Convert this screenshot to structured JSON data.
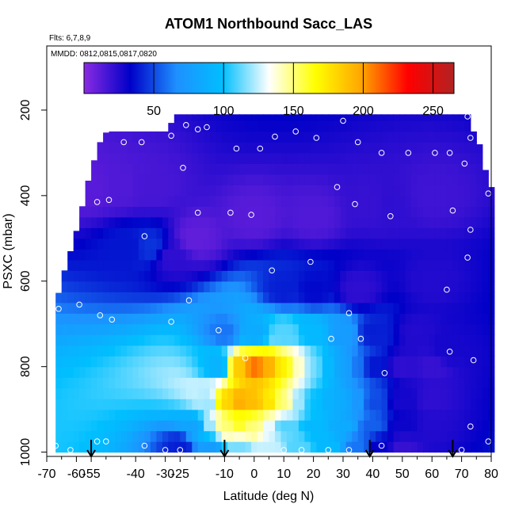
{
  "chart_data": {
    "type": "heatmap",
    "title": "ATOM1 Northbound Sacc_LAS",
    "annotations": [
      "Flts: 6,7,8,9",
      "MMDD: 0812,0815,0817,0820"
    ],
    "xlabel": "Latitude (deg N)",
    "ylabel": "PSXC (mbar)",
    "xlim": [
      -70,
      80
    ],
    "ylim": [
      1000,
      0
    ],
    "x_ticks": [
      -70,
      -60,
      -55,
      -40,
      -30,
      -25,
      -10,
      0,
      10,
      20,
      30,
      40,
      50,
      60,
      70,
      80
    ],
    "x_tick_labels": [
      "-70",
      "-60",
      "-55",
      "-40",
      "-30",
      "-25",
      "-10",
      "0",
      "10",
      "20",
      "30",
      "40",
      "50",
      "60",
      "70",
      "80"
    ],
    "x_minor_ticks": [
      -65,
      -50,
      -45,
      -35,
      -20,
      -15,
      -5,
      5,
      15,
      25,
      35,
      45,
      55,
      65,
      75
    ],
    "y_ticks": [
      200,
      400,
      600,
      800,
      1000
    ],
    "y_tick_labels": [
      "200",
      "400",
      "600",
      "800",
      "1000"
    ],
    "colorbar": {
      "range": [
        0,
        265
      ],
      "ticks": [
        50,
        100,
        150,
        200,
        250
      ],
      "tick_labels": [
        "50",
        "100",
        "150",
        "200",
        "250"
      ],
      "colors": [
        "#8a2be2",
        "#0000c8",
        "#1e90ff",
        "#00bfff",
        "#ffffff",
        "#ffff00",
        "#ffa500",
        "#ff0000",
        "#b22222"
      ]
    },
    "grid": false,
    "pressure_top_envelope": [
      {
        "lat": -67,
        "p": 660
      },
      {
        "lat": -65,
        "p": 595
      },
      {
        "lat": -63,
        "p": 555
      },
      {
        "lat": -61,
        "p": 505
      },
      {
        "lat": -59,
        "p": 460
      },
      {
        "lat": -57,
        "p": 390
      },
      {
        "lat": -55,
        "p": 340
      },
      {
        "lat": -53,
        "p": 295
      },
      {
        "lat": -51,
        "p": 255
      },
      {
        "lat": -49,
        "p": 250
      },
      {
        "lat": -29,
        "p": 250
      },
      {
        "lat": -27,
        "p": 210
      },
      {
        "lat": 72,
        "p": 210
      },
      {
        "lat": 74,
        "p": 250
      },
      {
        "lat": 76,
        "p": 280
      },
      {
        "lat": 78,
        "p": 340
      },
      {
        "lat": 80,
        "p": 380
      }
    ],
    "field": [
      {
        "lat": -55,
        "p": 380,
        "v": 12
      },
      {
        "lat": -45,
        "p": 380,
        "v": 14
      },
      {
        "lat": -35,
        "p": 380,
        "v": 16
      },
      {
        "lat": -42,
        "p": 520,
        "v": 38
      },
      {
        "lat": -35,
        "p": 520,
        "v": 45
      },
      {
        "lat": -28,
        "p": 540,
        "v": 22
      },
      {
        "lat": -20,
        "p": 500,
        "v": 10
      },
      {
        "lat": 0,
        "p": 450,
        "v": 12
      },
      {
        "lat": 20,
        "p": 450,
        "v": 14
      },
      {
        "lat": 40,
        "p": 420,
        "v": 20
      },
      {
        "lat": 45,
        "p": 420,
        "v": 22
      },
      {
        "lat": 60,
        "p": 400,
        "v": 18
      },
      {
        "lat": 10,
        "p": 620,
        "v": 40
      },
      {
        "lat": 20,
        "p": 620,
        "v": 35
      },
      {
        "lat": 35,
        "p": 620,
        "v": 22
      },
      {
        "lat": 60,
        "p": 600,
        "v": 25
      },
      {
        "lat": -10,
        "p": 720,
        "v": 60
      },
      {
        "lat": 0,
        "p": 720,
        "v": 85
      },
      {
        "lat": 10,
        "p": 720,
        "v": 110
      },
      {
        "lat": 20,
        "p": 720,
        "v": 95
      },
      {
        "lat": 30,
        "p": 720,
        "v": 75
      },
      {
        "lat": 40,
        "p": 720,
        "v": 40
      },
      {
        "lat": 55,
        "p": 720,
        "v": 25
      },
      {
        "lat": 65,
        "p": 760,
        "v": 28
      },
      {
        "lat": -12,
        "p": 800,
        "v": 90
      },
      {
        "lat": -5,
        "p": 800,
        "v": 185
      },
      {
        "lat": 0,
        "p": 800,
        "v": 210
      },
      {
        "lat": 5,
        "p": 800,
        "v": 195
      },
      {
        "lat": 10,
        "p": 800,
        "v": 170
      },
      {
        "lat": 15,
        "p": 800,
        "v": 140
      },
      {
        "lat": 20,
        "p": 800,
        "v": 115
      },
      {
        "lat": 25,
        "p": 800,
        "v": 95
      },
      {
        "lat": 30,
        "p": 800,
        "v": 80
      },
      {
        "lat": 35,
        "p": 800,
        "v": 60
      },
      {
        "lat": 40,
        "p": 800,
        "v": 38
      },
      {
        "lat": 50,
        "p": 800,
        "v": 22
      },
      {
        "lat": 60,
        "p": 800,
        "v": 20
      },
      {
        "lat": -15,
        "p": 880,
        "v": 120
      },
      {
        "lat": -10,
        "p": 880,
        "v": 180
      },
      {
        "lat": -5,
        "p": 880,
        "v": 195
      },
      {
        "lat": 0,
        "p": 880,
        "v": 190
      },
      {
        "lat": 5,
        "p": 880,
        "v": 175
      },
      {
        "lat": 10,
        "p": 880,
        "v": 150
      },
      {
        "lat": 15,
        "p": 880,
        "v": 120
      },
      {
        "lat": 20,
        "p": 880,
        "v": 100
      },
      {
        "lat": 25,
        "p": 880,
        "v": 90
      },
      {
        "lat": 30,
        "p": 880,
        "v": 85
      },
      {
        "lat": 35,
        "p": 880,
        "v": 72
      },
      {
        "lat": 40,
        "p": 880,
        "v": 50
      },
      {
        "lat": 50,
        "p": 880,
        "v": 28
      },
      {
        "lat": 60,
        "p": 880,
        "v": 22
      },
      {
        "lat": -20,
        "p": 940,
        "v": 80
      },
      {
        "lat": -15,
        "p": 940,
        "v": 120
      },
      {
        "lat": -10,
        "p": 940,
        "v": 150
      },
      {
        "lat": -5,
        "p": 940,
        "v": 160
      },
      {
        "lat": 0,
        "p": 940,
        "v": 150
      },
      {
        "lat": 5,
        "p": 940,
        "v": 130
      },
      {
        "lat": 10,
        "p": 940,
        "v": 110
      },
      {
        "lat": 20,
        "p": 940,
        "v": 95
      },
      {
        "lat": 30,
        "p": 940,
        "v": 85
      },
      {
        "lat": 40,
        "p": 940,
        "v": 55
      },
      {
        "lat": 50,
        "p": 940,
        "v": 30
      },
      {
        "lat": 60,
        "p": 940,
        "v": 25
      },
      {
        "lat": -25,
        "p": 985,
        "v": 40
      },
      {
        "lat": -15,
        "p": 985,
        "v": 75
      },
      {
        "lat": -5,
        "p": 985,
        "v": 115
      },
      {
        "lat": 5,
        "p": 985,
        "v": 125
      },
      {
        "lat": 15,
        "p": 985,
        "v": 110
      },
      {
        "lat": 25,
        "p": 985,
        "v": 95
      },
      {
        "lat": 35,
        "p": 985,
        "v": 60
      },
      {
        "lat": 42,
        "p": 985,
        "v": 32
      },
      {
        "lat": 50,
        "p": 985,
        "v": 20
      }
    ],
    "samples": [
      {
        "lat": 72,
        "p": 215
      },
      {
        "lat": 30,
        "p": 225
      },
      {
        "lat": -23,
        "p": 235
      },
      {
        "lat": -16,
        "p": 240
      },
      {
        "lat": -19,
        "p": 245
      },
      {
        "lat": 14,
        "p": 250
      },
      {
        "lat": -28,
        "p": 260
      },
      {
        "lat": 7,
        "p": 262
      },
      {
        "lat": 21,
        "p": 265
      },
      {
        "lat": 73,
        "p": 265
      },
      {
        "lat": -44,
        "p": 275
      },
      {
        "lat": -38,
        "p": 275
      },
      {
        "lat": 35,
        "p": 275
      },
      {
        "lat": -6,
        "p": 290
      },
      {
        "lat": 2,
        "p": 290
      },
      {
        "lat": -55,
        "p": 300
      },
      {
        "lat": 43,
        "p": 300
      },
      {
        "lat": 52,
        "p": 300
      },
      {
        "lat": 61,
        "p": 300
      },
      {
        "lat": 66,
        "p": 300
      },
      {
        "lat": 71,
        "p": 325
      },
      {
        "lat": -24,
        "p": 335
      },
      {
        "lat": 28,
        "p": 380
      },
      {
        "lat": 79,
        "p": 395
      },
      {
        "lat": -49,
        "p": 410
      },
      {
        "lat": -53,
        "p": 415
      },
      {
        "lat": 34,
        "p": 420
      },
      {
        "lat": 67,
        "p": 435
      },
      {
        "lat": -19,
        "p": 440
      },
      {
        "lat": -8,
        "p": 440
      },
      {
        "lat": -1,
        "p": 445
      },
      {
        "lat": 46,
        "p": 448
      },
      {
        "lat": 73,
        "p": 480
      },
      {
        "lat": -37,
        "p": 495
      },
      {
        "lat": 72,
        "p": 545
      },
      {
        "lat": 19,
        "p": 555
      },
      {
        "lat": 6,
        "p": 575
      },
      {
        "lat": 65,
        "p": 620
      },
      {
        "lat": -22,
        "p": 645
      },
      {
        "lat": -59,
        "p": 655
      },
      {
        "lat": -66,
        "p": 665
      },
      {
        "lat": 32,
        "p": 675
      },
      {
        "lat": -52,
        "p": 680
      },
      {
        "lat": -48,
        "p": 690
      },
      {
        "lat": -28,
        "p": 695
      },
      {
        "lat": -12,
        "p": 715
      },
      {
        "lat": 26,
        "p": 735
      },
      {
        "lat": 36,
        "p": 735
      },
      {
        "lat": 66,
        "p": 765
      },
      {
        "lat": -3,
        "p": 780
      },
      {
        "lat": 74,
        "p": 785
      },
      {
        "lat": 44,
        "p": 815
      },
      {
        "lat": 73,
        "p": 940
      },
      {
        "lat": 79,
        "p": 975
      },
      {
        "lat": -53,
        "p": 975
      },
      {
        "lat": -50,
        "p": 975
      },
      {
        "lat": -67,
        "p": 985
      },
      {
        "lat": -37,
        "p": 985
      },
      {
        "lat": 43,
        "p": 985
      },
      {
        "lat": -62,
        "p": 995
      },
      {
        "lat": -30,
        "p": 995
      },
      {
        "lat": -25,
        "p": 995
      },
      {
        "lat": 10,
        "p": 995
      },
      {
        "lat": 16,
        "p": 995
      },
      {
        "lat": 25,
        "p": 995
      },
      {
        "lat": 32,
        "p": 995
      },
      {
        "lat": 70,
        "p": 995
      }
    ],
    "flight_arrows": [
      -55,
      -10,
      39,
      67
    ]
  }
}
